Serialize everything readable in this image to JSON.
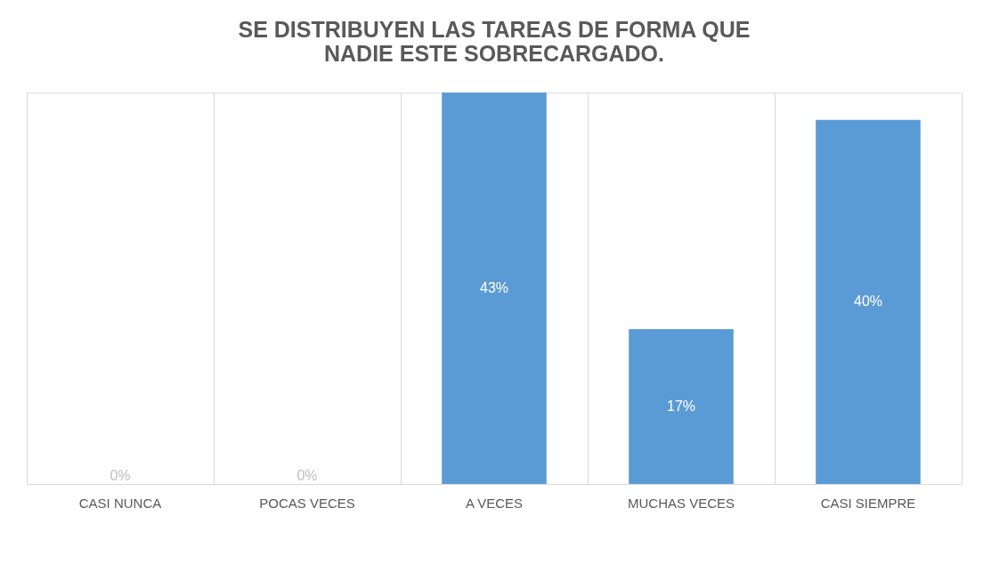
{
  "chart_data": {
    "type": "bar",
    "title": [
      "SE DISTRIBUYEN LAS TAREAS DE FORMA QUE",
      "NADIE ESTE SOBRECARGADO."
    ],
    "categories": [
      "CASI NUNCA",
      "POCAS VECES",
      "A VECES",
      "MUCHAS VECES",
      "CASI SIEMPRE"
    ],
    "values": [
      0,
      0,
      43,
      17,
      40
    ],
    "value_labels": [
      "0%",
      "0%",
      "43%",
      "17%",
      "40%"
    ],
    "color": "#5b9bd5",
    "grid": "x"
  }
}
